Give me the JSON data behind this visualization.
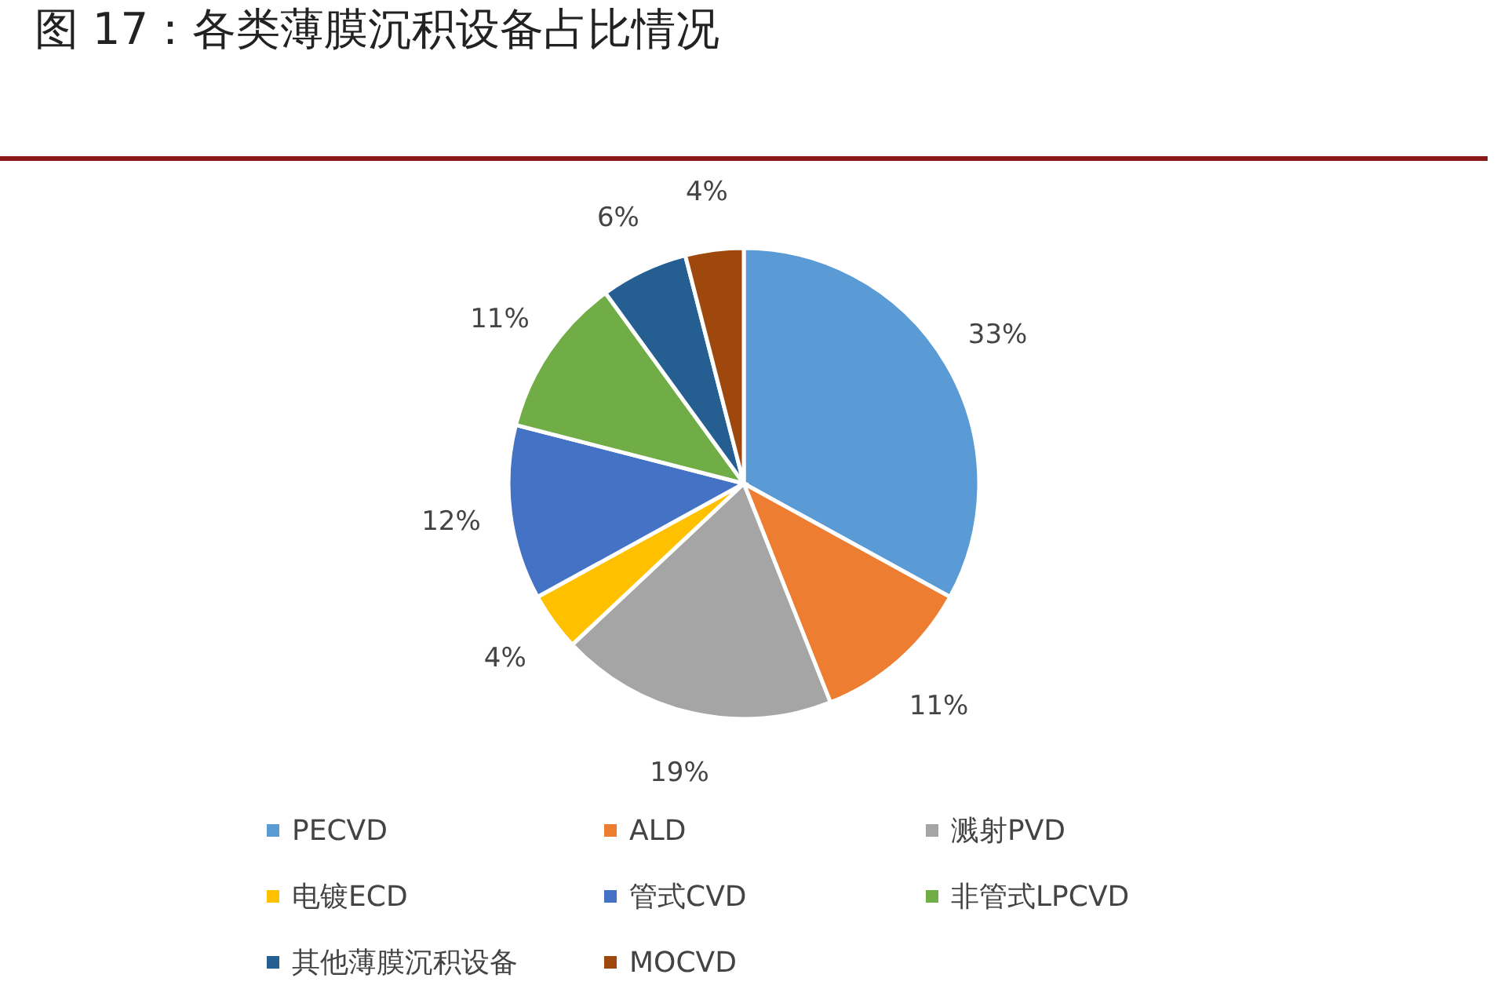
{
  "chart_data": {
    "type": "pie",
    "title": "图 17：各类薄膜沉积设备占比情况",
    "categories": [
      "PECVD",
      "ALD",
      "溅射PVD",
      "电镀ECD",
      "管式CVD",
      "非管式LPCVD",
      "其他薄膜沉积设备",
      "MOCVD"
    ],
    "values": [
      33,
      11,
      19,
      4,
      12,
      11,
      6,
      4
    ],
    "colors": [
      "#5b9bd5",
      "#ed7d31",
      "#a5a5a5",
      "#ffc000",
      "#4472c4",
      "#70ad47",
      "#255e91",
      "#9e480e"
    ],
    "value_labels": [
      "33%",
      "11%",
      "19%",
      "4%",
      "12%",
      "11%",
      "6%",
      "4%"
    ],
    "legend": "bottom"
  }
}
